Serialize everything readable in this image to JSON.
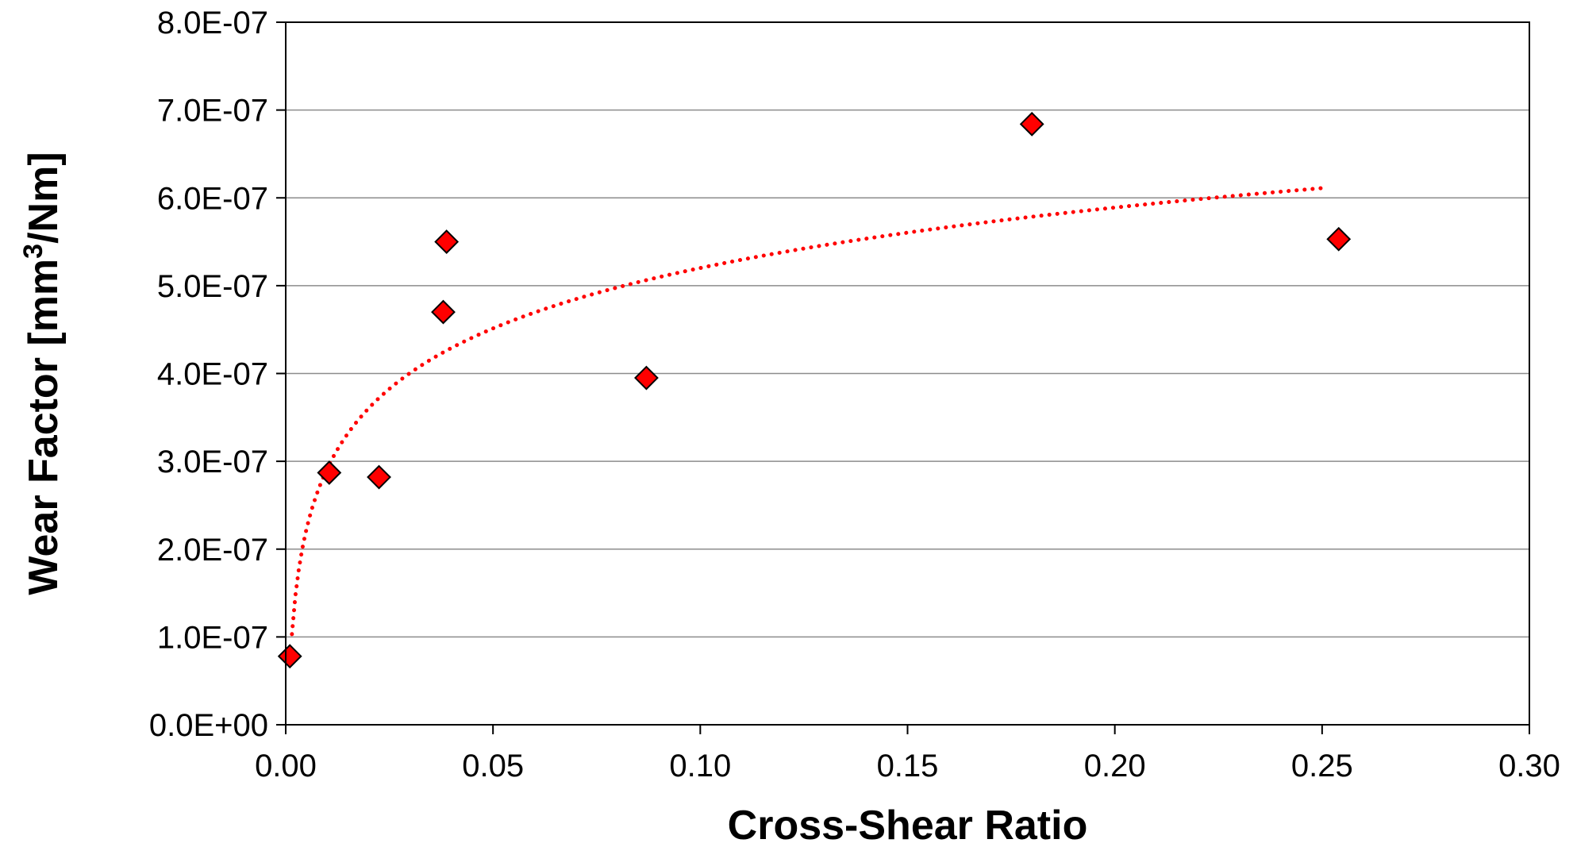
{
  "chart_data": {
    "type": "scatter",
    "xlabel": "Cross-Shear Ratio",
    "ylabel": {
      "prefix": "Wear Factor [mm",
      "superscript": "3",
      "suffix": "/Nm]"
    },
    "xlim": [
      0,
      0.3
    ],
    "ylim": [
      0,
      8e-07
    ],
    "x_ticks": [
      0,
      0.05,
      0.1,
      0.15,
      0.2,
      0.25,
      0.3
    ],
    "x_tick_labels": [
      "0.00",
      "0.05",
      "0.10",
      "0.15",
      "0.20",
      "0.25",
      "0.30"
    ],
    "y_ticks": [
      0,
      1e-07,
      2e-07,
      3e-07,
      4e-07,
      5e-07,
      6e-07,
      7e-07,
      8e-07
    ],
    "y_tick_labels": [
      "0.0E+00",
      "1.0E-07",
      "2.0E-07",
      "3.0E-07",
      "4.0E-07",
      "5.0E-07",
      "6.0E-07",
      "7.0E-07",
      "8.0E-07"
    ],
    "grid": "horizontal",
    "legend": "none",
    "series": [
      {
        "marker": "diamond",
        "color": "#ff0000",
        "edge_color": "#000000",
        "points": [
          {
            "x": 0.001,
            "y": 7.8e-08
          },
          {
            "x": 0.0105,
            "y": 2.87e-07
          },
          {
            "x": 0.0225,
            "y": 2.82e-07
          },
          {
            "x": 0.038,
            "y": 4.7e-07
          },
          {
            "x": 0.0388,
            "y": 5.5e-07
          },
          {
            "x": 0.087,
            "y": 3.95e-07
          },
          {
            "x": 0.18,
            "y": 6.84e-07
          },
          {
            "x": 0.254,
            "y": 5.53e-07
          }
        ]
      }
    ],
    "trendline": {
      "type": "logarithmic",
      "style": "dotted",
      "color": "#ff0000",
      "x_range": [
        0.0015,
        0.25
      ],
      "points": [
        {
          "x": 0.0015,
          "y": 9.6e-08
        },
        {
          "x": 0.01,
          "y": 3.02e-07
        },
        {
          "x": 0.03,
          "y": 4e-07
        },
        {
          "x": 0.05,
          "y": 4.55e-07
        },
        {
          "x": 0.085,
          "y": 5.05e-07
        },
        {
          "x": 0.15,
          "y": 5.55e-07
        },
        {
          "x": 0.2,
          "y": 5.88e-07
        },
        {
          "x": 0.25,
          "y": 6.1e-07
        }
      ]
    }
  }
}
